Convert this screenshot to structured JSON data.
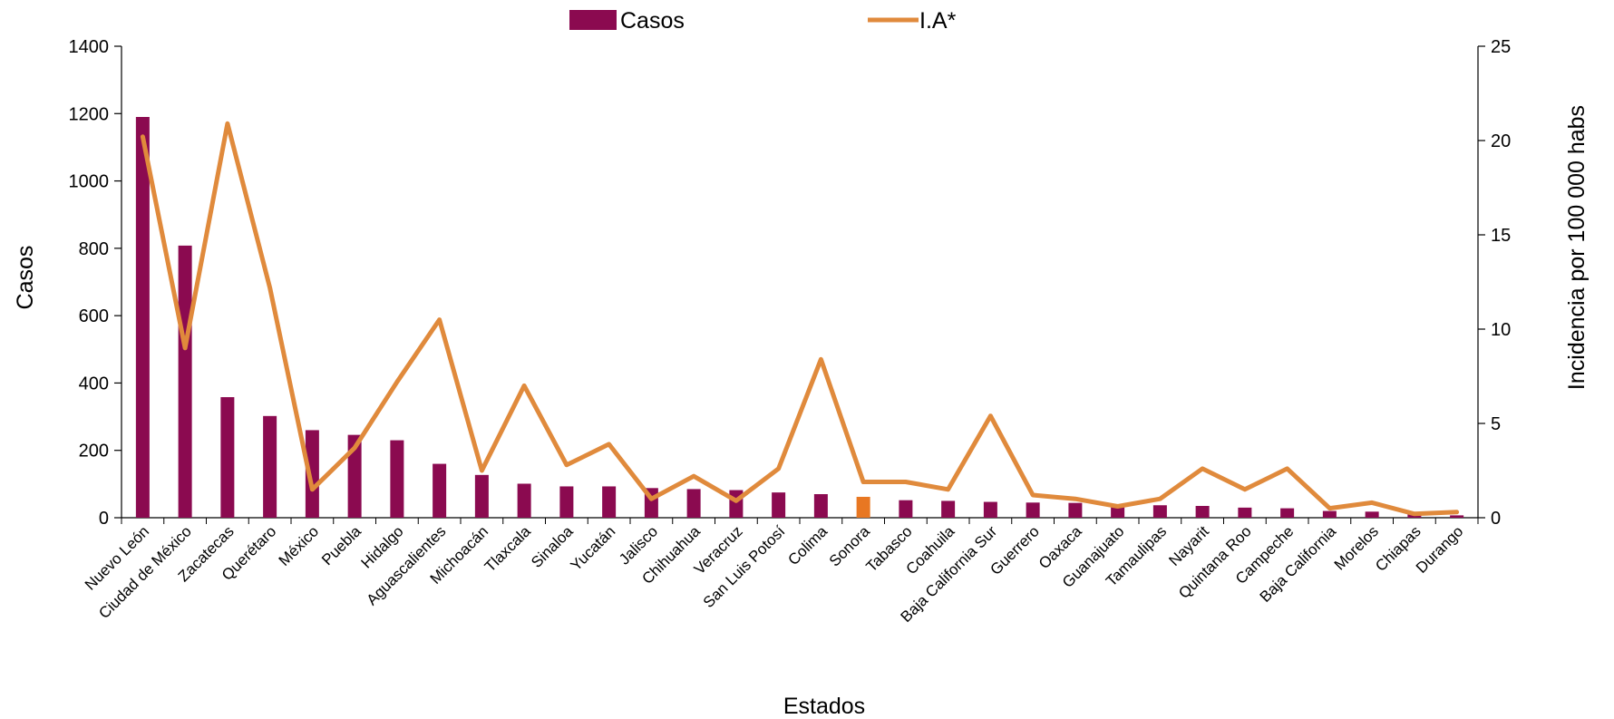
{
  "chart_data": {
    "type": "bar",
    "categories": [
      "Nuevo León",
      "Ciudad de México",
      "Zacatecas",
      "Querétaro",
      "México",
      "Puebla",
      "Hidalgo",
      "Aguascalientes",
      "Michoacán",
      "Tlaxcala",
      "Sinaloa",
      "Yucatán",
      "Jalisco",
      "Chihuahua",
      "Veracruz",
      "San Luis Potosí",
      "Colima",
      "Sonora",
      "Tabasco",
      "Coahuila",
      "Baja California Sur",
      "Guerrero",
      "Oaxaca",
      "Guanajuato",
      "Tamaulipas",
      "Nayarit",
      "Quintana Roo",
      "Campeche",
      "Baja California",
      "Morelos",
      "Chiapas",
      "Durango"
    ],
    "series": [
      {
        "name": "Casos",
        "type": "bar",
        "axis": "left",
        "color": "#8B0A50",
        "values": [
          1190,
          808,
          358,
          302,
          260,
          246,
          230,
          160,
          127,
          101,
          93,
          93,
          88,
          85,
          82,
          75,
          70,
          62,
          52,
          50,
          47,
          45,
          44,
          40,
          37,
          35,
          30,
          28,
          20,
          18,
          10,
          7
        ]
      },
      {
        "name": "I.A*",
        "type": "line",
        "axis": "right",
        "color": "#E08A3C",
        "values": [
          20.2,
          9.0,
          20.9,
          12.2,
          1.5,
          3.7,
          7.2,
          10.5,
          2.5,
          7.0,
          2.8,
          3.9,
          1.0,
          2.2,
          0.9,
          2.6,
          8.4,
          1.9,
          1.9,
          1.5,
          5.4,
          1.2,
          1.0,
          0.6,
          1.0,
          2.6,
          1.5,
          2.6,
          0.5,
          0.8,
          0.2,
          0.3
        ]
      }
    ],
    "highlight": {
      "category": "Sonora",
      "color": "#E87722"
    },
    "xlabel": "Estados",
    "ylabel": "Casos",
    "y2label": "Incidencia por 100 000 habs",
    "ylim": [
      0,
      1400
    ],
    "y2lim": [
      0,
      25
    ],
    "yticks": [
      0,
      200,
      400,
      600,
      800,
      1000,
      1200,
      1400
    ],
    "y2ticks": [
      0,
      5,
      10,
      15,
      20,
      25
    ],
    "grid": false,
    "legend": {
      "position": "top-center",
      "items": [
        {
          "label": "Casos",
          "kind": "bar"
        },
        {
          "label": "I.A*",
          "kind": "line"
        }
      ]
    }
  }
}
